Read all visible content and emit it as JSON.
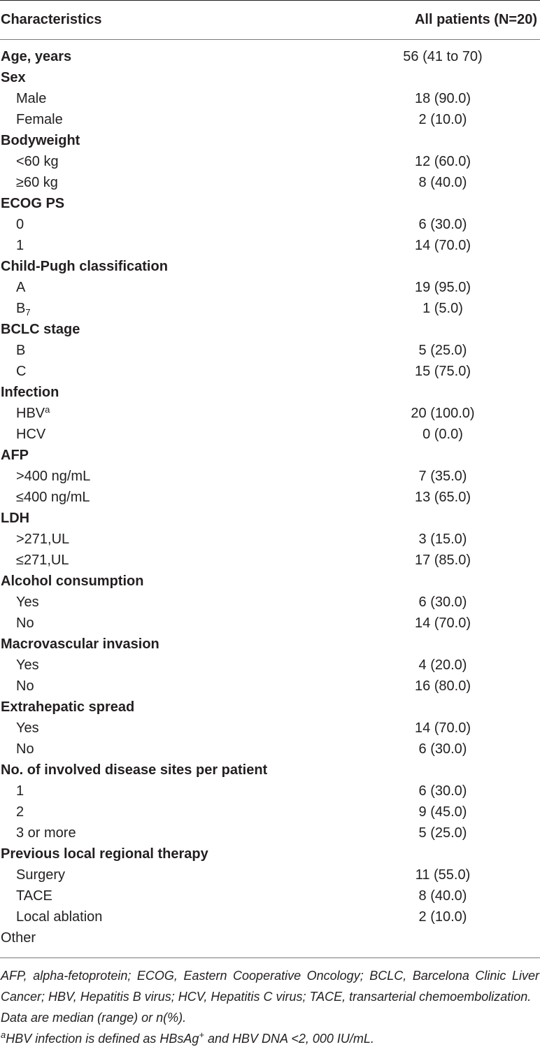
{
  "table": {
    "header": {
      "characteristics": "Characteristics",
      "all_patients": "All patients (N=20)"
    },
    "rows": [
      {
        "type": "cat",
        "label": "Age, years",
        "value": "56 (41 to 70)"
      },
      {
        "type": "cat",
        "label": "Sex",
        "value": ""
      },
      {
        "type": "sub",
        "label": "Male",
        "value": "18 (90.0)"
      },
      {
        "type": "sub",
        "label": "Female",
        "value": "2 (10.0)"
      },
      {
        "type": "cat",
        "label": "Bodyweight",
        "value": ""
      },
      {
        "type": "sub",
        "label": "<60 kg",
        "value": "12 (60.0)"
      },
      {
        "type": "sub",
        "label": "≥60 kg",
        "value": "8 (40.0)"
      },
      {
        "type": "cat",
        "label": "ECOG PS",
        "value": ""
      },
      {
        "type": "sub",
        "label": "0",
        "value": "6 (30.0)"
      },
      {
        "type": "sub",
        "label": "1",
        "value": "14 (70.0)"
      },
      {
        "type": "cat",
        "label": "Child-Pugh classification",
        "value": ""
      },
      {
        "type": "sub",
        "label": "A",
        "value": "19 (95.0)"
      },
      {
        "type": "sub",
        "label": "B",
        "label_sub": "7",
        "value": "1 (5.0)"
      },
      {
        "type": "cat",
        "label": "BCLC stage",
        "value": ""
      },
      {
        "type": "sub",
        "label": "B",
        "value": "5 (25.0)"
      },
      {
        "type": "sub",
        "label": "C",
        "value": "15 (75.0)"
      },
      {
        "type": "cat",
        "label": "Infection",
        "value": ""
      },
      {
        "type": "sub",
        "label": "HBV",
        "label_sup": "a",
        "value": "20 (100.0)"
      },
      {
        "type": "sub",
        "label": "HCV",
        "value": "0 (0.0)"
      },
      {
        "type": "cat",
        "label": "AFP",
        "value": ""
      },
      {
        "type": "sub",
        "label": ">400 ng/mL",
        "value": "7 (35.0)"
      },
      {
        "type": "sub",
        "label": "≤400 ng/mL",
        "value": "13 (65.0)"
      },
      {
        "type": "cat",
        "label": "LDH",
        "value": ""
      },
      {
        "type": "sub",
        "label": ">271,UL",
        "value": "3 (15.0)"
      },
      {
        "type": "sub",
        "label": "≤271,UL",
        "value": "17 (85.0)"
      },
      {
        "type": "cat",
        "label": "Alcohol consumption",
        "value": ""
      },
      {
        "type": "sub",
        "label": "Yes",
        "value": "6 (30.0)"
      },
      {
        "type": "sub",
        "label": "No",
        "value": "14 (70.0)"
      },
      {
        "type": "cat",
        "label": "Macrovascular invasion",
        "value": ""
      },
      {
        "type": "sub",
        "label": "Yes",
        "value": "4 (20.0)"
      },
      {
        "type": "sub",
        "label": "No",
        "value": "16 (80.0)"
      },
      {
        "type": "cat",
        "label": "Extrahepatic spread",
        "value": ""
      },
      {
        "type": "sub",
        "label": "Yes",
        "value": "14 (70.0)"
      },
      {
        "type": "sub",
        "label": "No",
        "value": "6 (30.0)"
      },
      {
        "type": "cat",
        "label": "No. of involved disease sites per patient",
        "value": ""
      },
      {
        "type": "sub",
        "label": "1",
        "value": "6 (30.0)"
      },
      {
        "type": "sub",
        "label": "2",
        "value": "9 (45.0)"
      },
      {
        "type": "sub",
        "label": "3 or more",
        "value": "5 (25.0)"
      },
      {
        "type": "cat",
        "label": "Previous local regional therapy",
        "value": ""
      },
      {
        "type": "sub",
        "label": "Surgery",
        "value": "11 (55.0)"
      },
      {
        "type": "sub",
        "label": "TACE",
        "value": "8 (40.0)"
      },
      {
        "type": "sub",
        "label": "Local ablation",
        "value": "2 (10.0)"
      },
      {
        "type": "plain",
        "label": "Other",
        "value": ""
      }
    ]
  },
  "footnotes": {
    "abbreviations": "AFP, alpha-fetoprotein; ECOG, Eastern Cooperative Oncology; BCLC, Barcelona Clinic Liver Cancer; HBV, Hepatitis B virus; HCV, Hepatitis C virus; TACE, transarterial chemoembolization.",
    "data_note": "Data are median (range) or n(%).",
    "hbv_marker": "a",
    "hbv_text_1": "HBV infection is defined as HBsAg",
    "hbv_sup": "+",
    "hbv_text_2": " and HBV DNA <2, 000 IU/mL."
  }
}
